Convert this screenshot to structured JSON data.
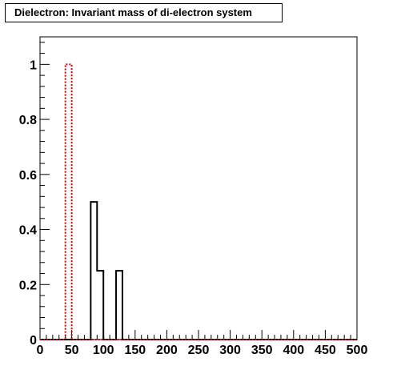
{
  "chart_data": {
    "type": "histogram",
    "title": "Dielectron: Invariant mass of di-electron system",
    "xlabel": "",
    "ylabel": "",
    "xlim": [
      0,
      500
    ],
    "ylim": [
      0,
      1.1
    ],
    "bin_width": 10,
    "x_ticks": [
      "0",
      "50",
      "100",
      "150",
      "200",
      "250",
      "300",
      "350",
      "400",
      "450",
      "500"
    ],
    "y_ticks": [
      "0",
      "0.2",
      "0.4",
      "0.6",
      "0.8",
      "1"
    ],
    "grid": false,
    "series": [
      {
        "color": "#000000",
        "line_style": "solid",
        "bins": [
          {
            "x0": 80,
            "x1": 90,
            "value": 0.5
          },
          {
            "x0": 90,
            "x1": 100,
            "value": 0.25
          },
          {
            "x0": 120,
            "x1": 130,
            "value": 0.25
          }
        ]
      },
      {
        "color": "#d40000",
        "line_style": "dotted",
        "bins": [
          {
            "x0": 40,
            "x1": 50,
            "value": 1.0
          }
        ]
      }
    ]
  }
}
